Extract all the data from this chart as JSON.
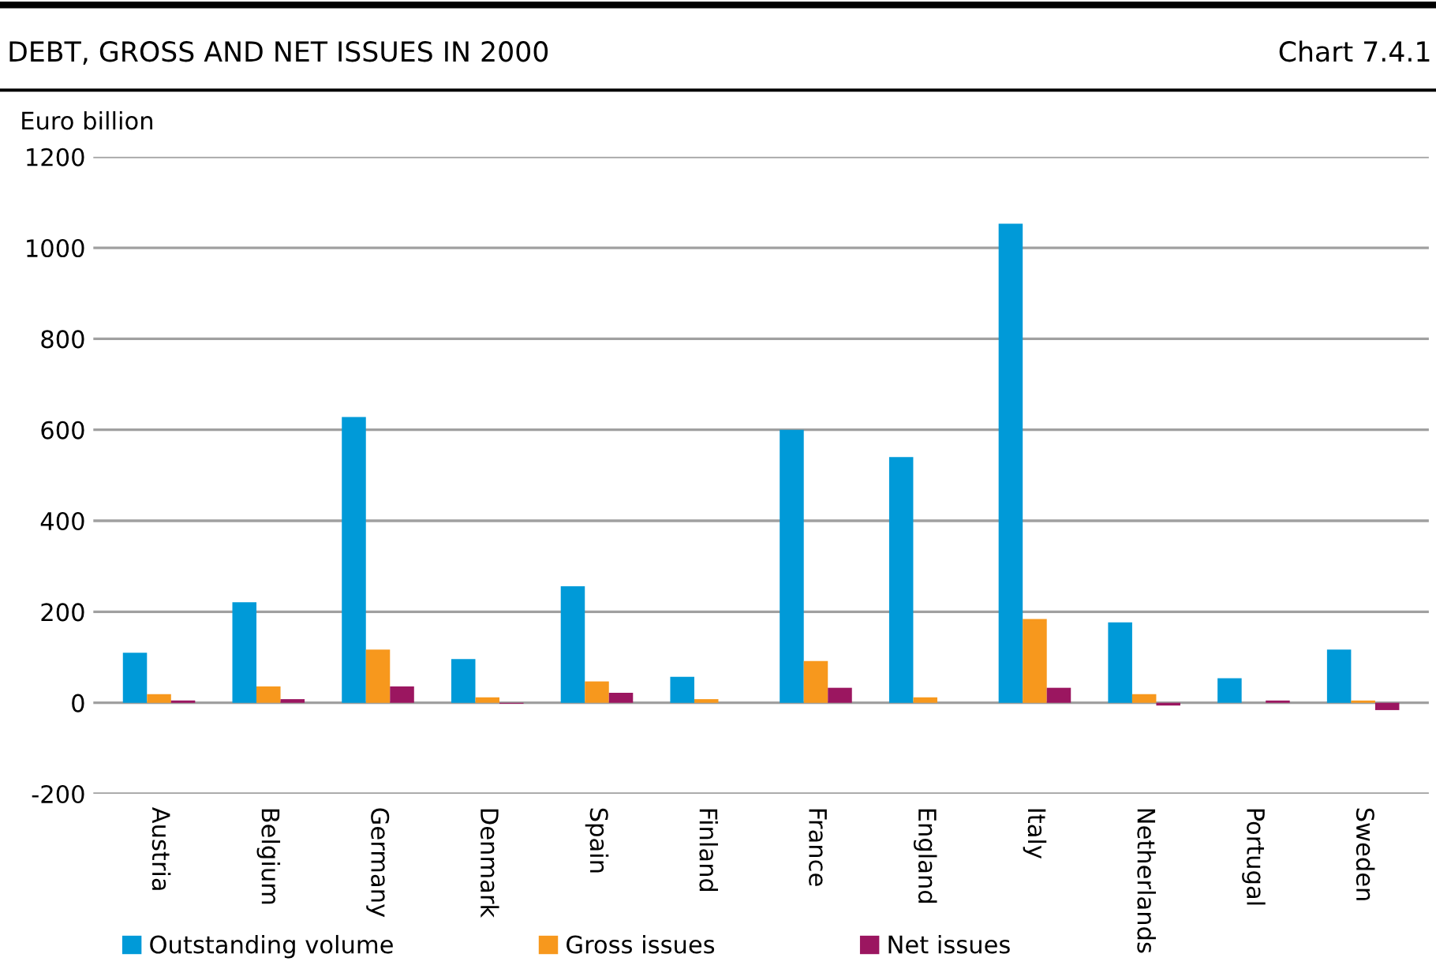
{
  "chart_data": {
    "type": "bar",
    "title": "DEBT, GROSS AND NET ISSUES IN 2000",
    "annotations": [
      "Chart 7.4.1"
    ],
    "ylabel": "Euro billion",
    "categories": [
      "Austria",
      "Belgium",
      "Germany",
      "Denmark",
      "Spain",
      "Finland",
      "France",
      "England",
      "Italy",
      "Netherlands",
      "Portugal",
      "Sweden"
    ],
    "series": [
      {
        "name": "Outstanding volume",
        "color": "#009ad8",
        "values": [
          110,
          221,
          628,
          96,
          256,
          57,
          600,
          540,
          1053,
          177,
          54,
          117
        ]
      },
      {
        "name": "Gross issues",
        "color": "#f7981d",
        "values": [
          19,
          36,
          117,
          12,
          47,
          8,
          92,
          12,
          184,
          19,
          null,
          5
        ]
      },
      {
        "name": "Net issues",
        "color": "#9b1660",
        "values": [
          5,
          8,
          36,
          -2,
          22,
          null,
          33,
          null,
          33,
          -6,
          5,
          -16
        ]
      }
    ],
    "ylim": [
      -200,
      1200
    ],
    "yticks": [
      -200,
      0,
      200,
      400,
      600,
      800,
      1000,
      1200
    ],
    "grid": "y",
    "legend": "bottom"
  }
}
